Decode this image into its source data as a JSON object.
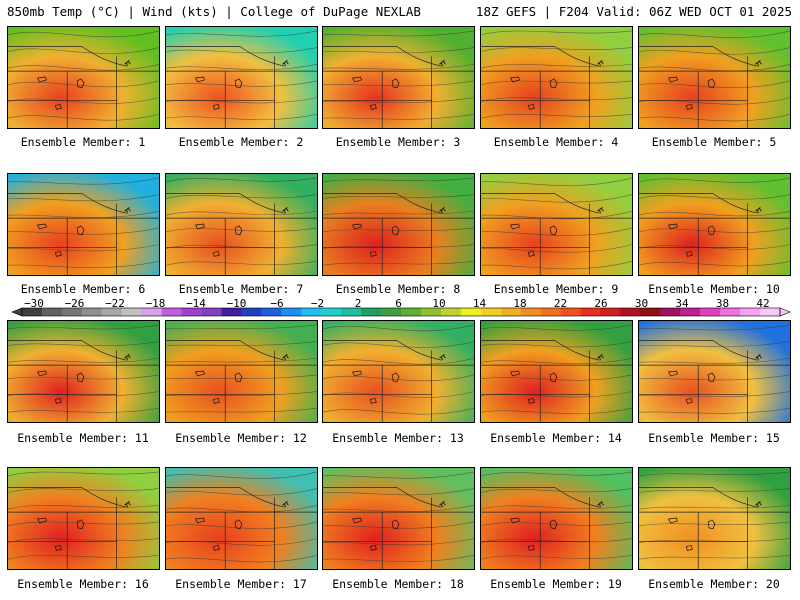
{
  "header": {
    "left": "850mb Temp (°C) | Wind (kts) | College of DuPage NEXLAB",
    "right": "18Z GEFS | F204 Valid: 06Z WED OCT 01 2025"
  },
  "panels": [
    {
      "label": "Ensemble Member: 1",
      "tint": "#f0b030",
      "warm": "#e84020",
      "cool": "#60c020"
    },
    {
      "label": "Ensemble Member: 2",
      "tint": "#f0c040",
      "warm": "#f05020",
      "cool": "#20d0b0"
    },
    {
      "label": "Ensemble Member: 3",
      "tint": "#f0b030",
      "warm": "#e83020",
      "cool": "#50b030"
    },
    {
      "label": "Ensemble Member: 4",
      "tint": "#f0a020",
      "warm": "#e84020",
      "cool": "#90d040"
    },
    {
      "label": "Ensemble Member: 5",
      "tint": "#f0a020",
      "warm": "#e84020",
      "cool": "#60c030"
    },
    {
      "label": "Ensemble Member: 6",
      "tint": "#f0a020",
      "warm": "#e84020",
      "cool": "#20b0e0"
    },
    {
      "label": "Ensemble Member: 7",
      "tint": "#f0b030",
      "warm": "#e85020",
      "cool": "#30b060"
    },
    {
      "label": "Ensemble Member: 8",
      "tint": "#e88020",
      "warm": "#e02020",
      "cool": "#40b040"
    },
    {
      "label": "Ensemble Member: 9",
      "tint": "#f0a020",
      "warm": "#e84020",
      "cool": "#90d040"
    },
    {
      "label": "Ensemble Member: 10",
      "tint": "#f0a020",
      "warm": "#e02020",
      "cool": "#60c030"
    },
    {
      "label": "Ensemble Member: 11",
      "tint": "#f0b030",
      "warm": "#e02020",
      "cool": "#30a040"
    },
    {
      "label": "Ensemble Member: 12",
      "tint": "#f0a020",
      "warm": "#e85020",
      "cool": "#40b050"
    },
    {
      "label": "Ensemble Member: 13",
      "tint": "#f0b030",
      "warm": "#e85020",
      "cool": "#30b060"
    },
    {
      "label": "Ensemble Member: 14",
      "tint": "#f0a020",
      "warm": "#e02020",
      "cool": "#30a040"
    },
    {
      "label": "Ensemble Member: 15",
      "tint": "#f0c040",
      "warm": "#e85020",
      "cool": "#2070e0"
    },
    {
      "label": "Ensemble Member: 16",
      "tint": "#f08020",
      "warm": "#e02020",
      "cool": "#90d040"
    },
    {
      "label": "Ensemble Member: 17",
      "tint": "#f08020",
      "warm": "#e84020",
      "cool": "#40c0b0"
    },
    {
      "label": "Ensemble Member: 18",
      "tint": "#f08020",
      "warm": "#e02020",
      "cool": "#60c060"
    },
    {
      "label": "Ensemble Member: 19",
      "tint": "#f08020",
      "warm": "#e02020",
      "cool": "#50c060"
    },
    {
      "label": "Ensemble Member: 20",
      "tint": "#f0c040",
      "warm": "#f09020",
      "cool": "#30a040"
    }
  ],
  "colorbar": {
    "labels": [
      "−30",
      "−26",
      "−22",
      "−18",
      "−14",
      "−10",
      "−6",
      "−2",
      "2",
      "6",
      "10",
      "14",
      "18",
      "22",
      "26",
      "30",
      "34",
      "38",
      "42"
    ],
    "colors": [
      "#404040",
      "#606060",
      "#787878",
      "#909090",
      "#a8a8a8",
      "#c0c0c0",
      "#d8a0e8",
      "#c060e0",
      "#a040d0",
      "#8040c0",
      "#4020a0",
      "#2040c0",
      "#2060e0",
      "#2090f0",
      "#20c0f0",
      "#20d0d0",
      "#20c0a0",
      "#20a060",
      "#40a040",
      "#60b030",
      "#90c030",
      "#c0d030",
      "#f0f020",
      "#f0d020",
      "#f0b020",
      "#f09020",
      "#f07020",
      "#f05020",
      "#e83020",
      "#d02020",
      "#b01020",
      "#901010",
      "#a01060",
      "#c02090",
      "#e040c0",
      "#f070e0",
      "#f8a0f0",
      "#f8c8f8"
    ]
  }
}
